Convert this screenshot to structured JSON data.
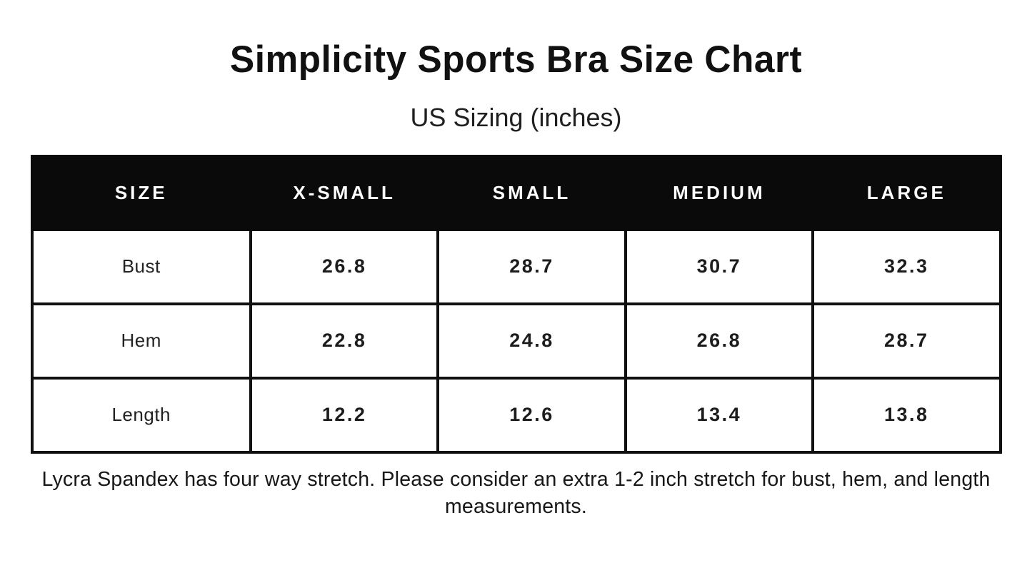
{
  "page": {
    "background_color": "#ffffff",
    "accent_color": "#0a0a0a",
    "text_color": "#1a1a1a"
  },
  "title": "Simplicity Sports Bra Size Chart",
  "subtitle": "US Sizing (inches)",
  "table": {
    "header_bg": "#0a0a0a",
    "header_text_color": "#ffffff",
    "border_color": "#101010",
    "columns": [
      "SIZE",
      "X-SMALL",
      "SMALL",
      "MEDIUM",
      "LARGE"
    ],
    "rows": [
      {
        "label": "Bust",
        "values": [
          "26.8",
          "28.7",
          "30.7",
          "32.3"
        ]
      },
      {
        "label": "Hem",
        "values": [
          "22.8",
          "24.8",
          "26.8",
          "28.7"
        ]
      },
      {
        "label": "Length",
        "values": [
          "12.2",
          "12.6",
          "13.4",
          "13.8"
        ]
      }
    ]
  },
  "footnote": "Lycra Spandex has four way stretch. Please consider an extra 1-2 inch stretch for bust, hem, and length measurements.",
  "chart_data": {
    "type": "table",
    "title": "Simplicity Sports Bra Size Chart",
    "subtitle": "US Sizing (inches)",
    "units": "inches",
    "columns": [
      "SIZE",
      "X-SMALL",
      "SMALL",
      "MEDIUM",
      "LARGE"
    ],
    "rows": [
      [
        "Bust",
        26.8,
        28.7,
        30.7,
        32.3
      ],
      [
        "Hem",
        22.8,
        24.8,
        26.8,
        28.7
      ],
      [
        "Length",
        12.2,
        12.6,
        13.4,
        13.8
      ]
    ],
    "note": "Lycra Spandex has four way stretch. Please consider an extra 1-2 inch stretch for bust, hem, and length measurements."
  }
}
